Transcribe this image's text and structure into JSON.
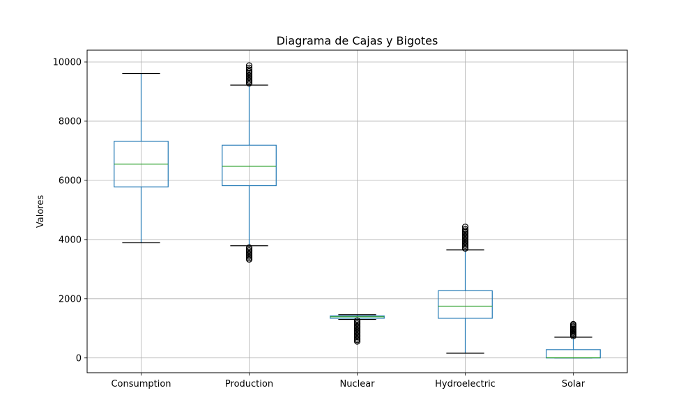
{
  "chart_data": {
    "type": "boxplot",
    "title": "Diagrama de Cajas y Bigotes",
    "xlabel": "",
    "ylabel": "Valores",
    "ylim": [
      -500,
      10400
    ],
    "yticks": [
      0,
      2000,
      4000,
      6000,
      8000,
      10000
    ],
    "grid": true,
    "categories": [
      "Consumption",
      "Production",
      "Nuclear",
      "Hydroelectric",
      "Solar"
    ],
    "colors": {
      "box": "#1f77b4",
      "median": "#2ca02c",
      "whisker": "#1f77b4",
      "cap": "#000000",
      "flier": "#000000",
      "grid": "#b0b0b0"
    },
    "boxes": [
      {
        "name": "Consumption",
        "whisker_low": 3890,
        "q1": 5780,
        "median": 6550,
        "q3": 7320,
        "whisker_high": 9610,
        "fliers_low": [],
        "fliers_high": []
      },
      {
        "name": "Production",
        "whisker_low": 3790,
        "q1": 5820,
        "median": 6480,
        "q3": 7190,
        "whisker_high": 9220,
        "fliers_low": [
          3330,
          3380,
          3430,
          3480,
          3530,
          3580,
          3630,
          3680,
          3730
        ],
        "fliers_high": [
          9280,
          9330,
          9380,
          9430,
          9480,
          9530,
          9580,
          9630,
          9680,
          9740,
          9800,
          9880
        ]
      },
      {
        "name": "Nuclear",
        "whisker_low": 1300,
        "q1": 1340,
        "median": 1390,
        "q3": 1420,
        "whisker_high": 1460,
        "fliers_low": [
          560,
          610,
          660,
          710,
          760,
          810,
          860,
          910,
          960,
          1010,
          1060,
          1110,
          1160,
          1210,
          1260
        ],
        "fliers_high": []
      },
      {
        "name": "Hydroelectric",
        "whisker_low": 160,
        "q1": 1340,
        "median": 1750,
        "q3": 2270,
        "whisker_high": 3650,
        "fliers_low": [],
        "fliers_high": [
          3700,
          3750,
          3800,
          3850,
          3900,
          3950,
          4000,
          4050,
          4100,
          4150,
          4200,
          4250,
          4300,
          4350,
          4430
        ]
      },
      {
        "name": "Solar",
        "whisker_low": 0,
        "q1": 0,
        "median": 5,
        "q3": 280,
        "whisker_high": 700,
        "fliers_low": [],
        "fliers_high": [
          740,
          780,
          820,
          860,
          900,
          940,
          980,
          1020,
          1060,
          1100,
          1140
        ]
      }
    ]
  }
}
